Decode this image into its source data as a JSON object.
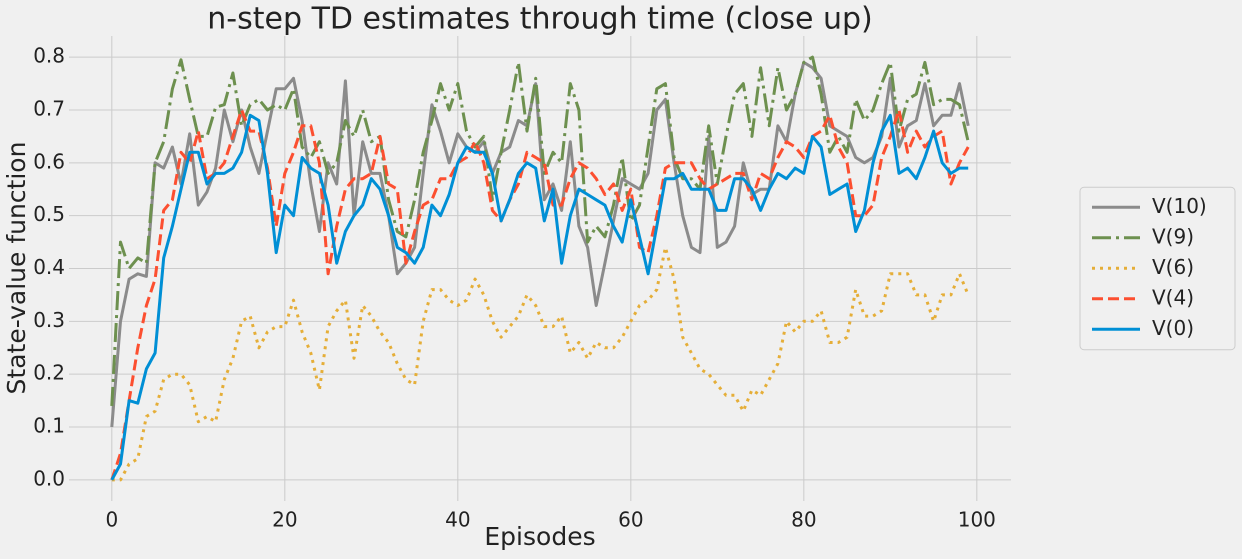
{
  "chart_data": {
    "type": "line",
    "title": "n-step TD estimates through time (close up)",
    "x_label": "Episodes",
    "y_label": "State-value function",
    "x": [
      0,
      1,
      2,
      3,
      4,
      5,
      6,
      7,
      8,
      9,
      10,
      11,
      12,
      13,
      14,
      15,
      16,
      17,
      18,
      19,
      20,
      21,
      22,
      23,
      24,
      25,
      26,
      27,
      28,
      29,
      30,
      31,
      32,
      33,
      34,
      35,
      36,
      37,
      38,
      39,
      40,
      41,
      42,
      43,
      44,
      45,
      46,
      47,
      48,
      49,
      50,
      51,
      52,
      53,
      54,
      55,
      56,
      57,
      58,
      59,
      60,
      61,
      62,
      63,
      64,
      65,
      66,
      67,
      68,
      69,
      70,
      71,
      72,
      73,
      74,
      75,
      76,
      77,
      78,
      79,
      80,
      81,
      82,
      83,
      84,
      85,
      86,
      87,
      88,
      89,
      90,
      91,
      92,
      93,
      94,
      95,
      96,
      97,
      98,
      99
    ],
    "series": [
      {
        "name": "V(10)",
        "color": "#8b8b8b",
        "dash": "solid",
        "values": [
          0.1,
          0.3,
          0.38,
          0.39,
          0.385,
          0.6,
          0.59,
          0.63,
          0.56,
          0.655,
          0.52,
          0.545,
          0.59,
          0.7,
          0.64,
          0.7,
          0.63,
          0.58,
          0.66,
          0.74,
          0.74,
          0.76,
          0.68,
          0.56,
          0.47,
          0.6,
          0.56,
          0.755,
          0.5,
          0.64,
          0.58,
          0.58,
          0.5,
          0.39,
          0.41,
          0.44,
          0.58,
          0.71,
          0.66,
          0.6,
          0.655,
          0.63,
          0.62,
          0.64,
          0.58,
          0.62,
          0.63,
          0.68,
          0.67,
          0.75,
          0.53,
          0.56,
          0.51,
          0.64,
          0.48,
          0.44,
          0.33,
          0.41,
          0.49,
          0.57,
          0.56,
          0.55,
          0.58,
          0.7,
          0.72,
          0.6,
          0.5,
          0.44,
          0.43,
          0.65,
          0.44,
          0.45,
          0.48,
          0.6,
          0.54,
          0.55,
          0.55,
          0.67,
          0.64,
          0.73,
          0.79,
          0.78,
          0.76,
          0.67,
          0.66,
          0.65,
          0.61,
          0.6,
          0.61,
          0.65,
          0.76,
          0.63,
          0.67,
          0.68,
          0.75,
          0.67,
          0.69,
          0.69,
          0.75,
          0.67
        ]
      },
      {
        "name": "V(9)",
        "color": "#6d904f",
        "dash": "dashdot",
        "values": [
          0.14,
          0.45,
          0.4,
          0.42,
          0.41,
          0.6,
          0.64,
          0.74,
          0.795,
          0.72,
          0.65,
          0.65,
          0.705,
          0.71,
          0.77,
          0.67,
          0.71,
          0.72,
          0.7,
          0.71,
          0.7,
          0.74,
          0.63,
          0.61,
          0.64,
          0.58,
          0.6,
          0.68,
          0.65,
          0.7,
          0.64,
          0.65,
          0.53,
          0.47,
          0.46,
          0.53,
          0.62,
          0.68,
          0.75,
          0.7,
          0.75,
          0.66,
          0.63,
          0.65,
          0.53,
          0.62,
          0.7,
          0.79,
          0.66,
          0.76,
          0.58,
          0.62,
          0.6,
          0.75,
          0.7,
          0.45,
          0.48,
          0.46,
          0.52,
          0.61,
          0.49,
          0.52,
          0.63,
          0.74,
          0.75,
          0.61,
          0.57,
          0.57,
          0.55,
          0.67,
          0.56,
          0.65,
          0.73,
          0.75,
          0.65,
          0.78,
          0.67,
          0.78,
          0.7,
          0.73,
          0.79,
          0.8,
          0.73,
          0.62,
          0.65,
          0.62,
          0.72,
          0.68,
          0.7,
          0.75,
          0.79,
          0.66,
          0.72,
          0.73,
          0.79,
          0.71,
          0.72,
          0.72,
          0.71,
          0.64
        ]
      },
      {
        "name": "V(6)",
        "color": "#e5ae38",
        "dash": "dotted",
        "values": [
          0.0,
          0.0,
          0.03,
          0.04,
          0.12,
          0.13,
          0.19,
          0.2,
          0.2,
          0.18,
          0.11,
          0.12,
          0.11,
          0.19,
          0.23,
          0.3,
          0.31,
          0.25,
          0.28,
          0.29,
          0.29,
          0.34,
          0.28,
          0.24,
          0.17,
          0.29,
          0.32,
          0.34,
          0.23,
          0.33,
          0.31,
          0.28,
          0.26,
          0.22,
          0.19,
          0.18,
          0.3,
          0.36,
          0.36,
          0.34,
          0.33,
          0.34,
          0.38,
          0.35,
          0.3,
          0.27,
          0.29,
          0.31,
          0.35,
          0.33,
          0.29,
          0.29,
          0.31,
          0.24,
          0.26,
          0.23,
          0.26,
          0.25,
          0.25,
          0.27,
          0.3,
          0.33,
          0.34,
          0.36,
          0.44,
          0.38,
          0.27,
          0.24,
          0.21,
          0.2,
          0.18,
          0.16,
          0.16,
          0.13,
          0.17,
          0.16,
          0.19,
          0.22,
          0.3,
          0.28,
          0.3,
          0.3,
          0.32,
          0.26,
          0.26,
          0.27,
          0.36,
          0.31,
          0.31,
          0.32,
          0.39,
          0.39,
          0.39,
          0.35,
          0.35,
          0.3,
          0.35,
          0.35,
          0.39,
          0.35
        ]
      },
      {
        "name": "V(4)",
        "color": "#fc4f30",
        "dash": "dashed",
        "values": [
          0.0,
          0.05,
          0.15,
          0.25,
          0.33,
          0.38,
          0.51,
          0.53,
          0.62,
          0.6,
          0.66,
          0.57,
          0.58,
          0.6,
          0.65,
          0.7,
          0.66,
          0.66,
          0.59,
          0.48,
          0.58,
          0.62,
          0.67,
          0.67,
          0.6,
          0.39,
          0.48,
          0.55,
          0.57,
          0.57,
          0.58,
          0.65,
          0.56,
          0.55,
          0.41,
          0.47,
          0.52,
          0.53,
          0.57,
          0.57,
          0.6,
          0.61,
          0.64,
          0.6,
          0.51,
          0.49,
          0.53,
          0.56,
          0.62,
          0.61,
          0.6,
          0.52,
          0.52,
          0.57,
          0.6,
          0.59,
          0.57,
          0.54,
          0.56,
          0.51,
          0.55,
          0.44,
          0.43,
          0.5,
          0.59,
          0.6,
          0.6,
          0.6,
          0.57,
          0.55,
          0.56,
          0.57,
          0.58,
          0.58,
          0.53,
          0.58,
          0.57,
          0.61,
          0.64,
          0.63,
          0.61,
          0.65,
          0.66,
          0.69,
          0.63,
          0.6,
          0.5,
          0.5,
          0.52,
          0.61,
          0.65,
          0.7,
          0.62,
          0.66,
          0.63,
          0.65,
          0.66,
          0.56,
          0.6,
          0.63
        ]
      },
      {
        "name": "V(0)",
        "color": "#008fd5",
        "dash": "solid",
        "values": [
          0.0,
          0.03,
          0.15,
          0.145,
          0.21,
          0.24,
          0.42,
          0.48,
          0.55,
          0.62,
          0.62,
          0.56,
          0.58,
          0.58,
          0.59,
          0.62,
          0.69,
          0.68,
          0.58,
          0.43,
          0.52,
          0.5,
          0.61,
          0.59,
          0.58,
          0.52,
          0.41,
          0.47,
          0.5,
          0.52,
          0.57,
          0.55,
          0.5,
          0.44,
          0.43,
          0.41,
          0.44,
          0.52,
          0.5,
          0.54,
          0.6,
          0.63,
          0.62,
          0.62,
          0.58,
          0.49,
          0.53,
          0.58,
          0.6,
          0.59,
          0.49,
          0.55,
          0.41,
          0.5,
          0.55,
          0.54,
          0.53,
          0.52,
          0.48,
          0.45,
          0.53,
          0.46,
          0.39,
          0.48,
          0.57,
          0.57,
          0.58,
          0.55,
          0.55,
          0.55,
          0.51,
          0.51,
          0.57,
          0.57,
          0.55,
          0.51,
          0.55,
          0.58,
          0.57,
          0.59,
          0.58,
          0.65,
          0.63,
          0.54,
          0.55,
          0.56,
          0.47,
          0.51,
          0.6,
          0.66,
          0.69,
          0.58,
          0.59,
          0.57,
          0.61,
          0.66,
          0.6,
          0.58,
          0.59,
          0.59
        ]
      }
    ],
    "xlim": [
      -4.95,
      103.95
    ],
    "ylim": [
      -0.04,
      0.84
    ],
    "xticks": [
      0,
      20,
      40,
      60,
      80,
      100
    ],
    "yticks": [
      {
        "value": 0,
        "label": "0.0"
      },
      0.1,
      0.2,
      0.3,
      0.4,
      0.5,
      0.6,
      0.7,
      0.8
    ],
    "grid": true,
    "legend": "center right outside"
  }
}
